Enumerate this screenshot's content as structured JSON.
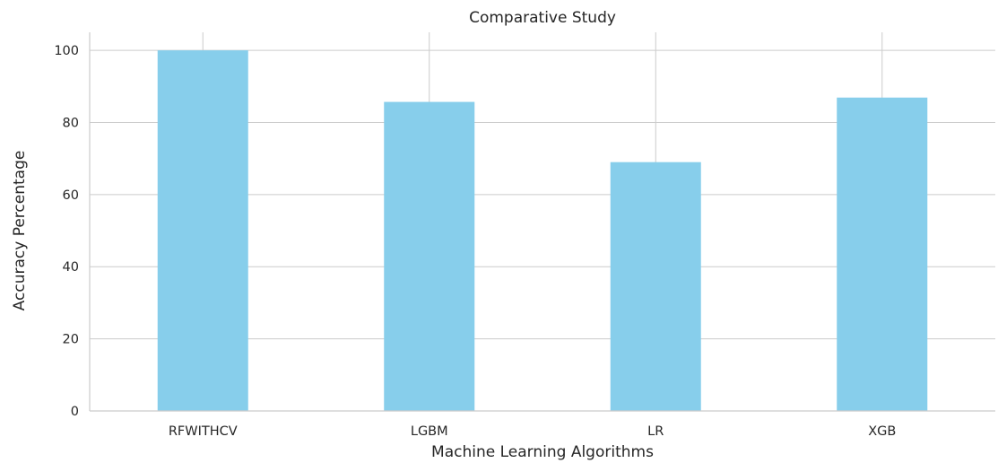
{
  "chart_data": {
    "type": "bar",
    "title": "Comparative Study",
    "xlabel": "Machine Learning Algorithms",
    "ylabel": "Accuracy Percentage",
    "categories": [
      "RFWITHCV",
      "LGBM",
      "LR",
      "XGB"
    ],
    "values": [
      100,
      85.7,
      69,
      86.9
    ],
    "ylim": [
      0,
      105
    ],
    "yticks": [
      0,
      20,
      40,
      60,
      80,
      100
    ],
    "grid": true,
    "bar_color": "#87CEEB",
    "grid_color": "#cccccc"
  }
}
